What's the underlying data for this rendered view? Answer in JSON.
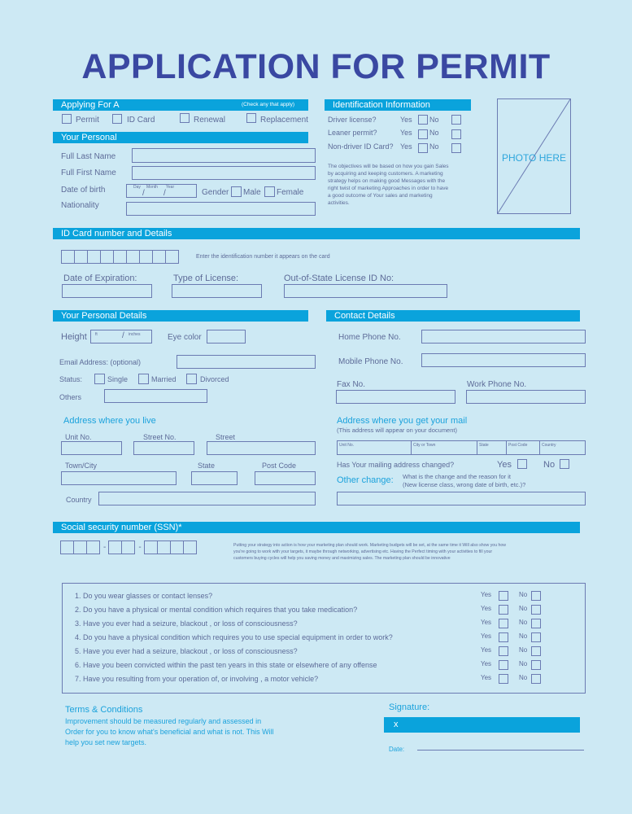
{
  "title": "APPLICATION FOR PERMIT",
  "applying": {
    "header": "Applying For A",
    "note": "(Check any that apply)",
    "options": [
      "Permit",
      "ID Card",
      "Renewal",
      "Replacement"
    ]
  },
  "personal": {
    "header": "Your Personal",
    "last_name": "Full Last Name",
    "first_name": "Full First Name",
    "dob": "Date of birth",
    "dob_day": "Day",
    "dob_month": "Month",
    "dob_year": "Year",
    "slash": "/",
    "gender": "Gender",
    "male": "Male",
    "female": "Female",
    "nationality": "Nationality"
  },
  "ident": {
    "header": "Identification Information",
    "rows": [
      {
        "label": "Driver license?",
        "yes": "Yes",
        "no": "No"
      },
      {
        "label": "Leaner permit?",
        "yes": "Yes",
        "no": "No"
      },
      {
        "label": "Non-driver ID Card?",
        "yes": "Yes",
        "no": "No"
      }
    ],
    "text": "The objectives will be based on how you gain Sales by acquiring and keeping customers. A marketing strategy helps on making good Messages with the right twist of marketing Approaches in order to have a good outcome of Your sales and marketing activities."
  },
  "photo": "PHOTO HERE",
  "idcard": {
    "header": "ID Card number and Details",
    "hint": "Enter the identification number it appears on the card",
    "expiration": "Date of Expiration:",
    "license_type": "Type of License:",
    "out_of_state": "Out-of-State License ID No:"
  },
  "details": {
    "header": "Your Personal Details",
    "height": "Height",
    "ft": "ft",
    "inches": "inches",
    "eye": "Eye color",
    "email": "Email Address: (optional)",
    "status": "Status:",
    "single": "Single",
    "married": "Married",
    "divorced": "Divorced",
    "others": "Others"
  },
  "contact": {
    "header": "Contact Details",
    "home": "Home Phone No.",
    "mobile": "Mobile Phone No.",
    "fax": "Fax No.",
    "work": "Work Phone No."
  },
  "address": {
    "header": "Address where you live",
    "unit": "Unit No.",
    "street_no": "Street No.",
    "street": "Street",
    "town": "Town/City",
    "state": "State",
    "post": "Post Code",
    "country": "Country"
  },
  "mail": {
    "header": "Address where you get your mail",
    "note": "(This address will appear on your document)",
    "cols": [
      "Unit No.",
      "City or Town",
      "State",
      "Post Code",
      "Country"
    ],
    "changed": "Has Your mailing address changed?",
    "yes": "Yes",
    "no": "No",
    "other": "Other change:",
    "other_note1": "What is the change and the reason for it",
    "other_note2": "(New license class, wrong date of birth, etc.)?"
  },
  "ssn": {
    "header": "Social security number (SSN)*",
    "dash": "-",
    "text": "Putting your strategy into action is how your marketing plan should work. Marketing budgets will be set, at the same time it Will also show you how you're going to work with your targets, it maybe through networking, advertising etc. Having the Perfect timing with your activities to fill your customers buying cycles will help you saving money and maximizing sales. The marketing plan should be innovative"
  },
  "questions": {
    "yes": "Yes",
    "no": "No",
    "items": [
      "1. Do you wear glasses or contact lenses?",
      "2. Do you have a physical or mental condition which requires that you take medication?",
      "3. Have you ever had a seizure, blackout , or loss of consciousness?",
      "4. Do you have a physical condition which requires you to use special equipment in order to work?",
      "5. Have you ever had a seizure, blackout , or loss of consciousness?",
      "6. Have you been convicted within the past ten years in this state or elsewhere of any offense",
      "7. Have you resulting from your operation of, or involving , a motor vehicle?"
    ]
  },
  "terms": {
    "header": "Terms & Conditions",
    "text": "Improvement should be measured regularly and assessed in Order for you to know what's beneficial and what is not. This Will help you set new targets."
  },
  "signature": {
    "label": "Signature:",
    "x": "x",
    "date": "Date:"
  },
  "colors": {
    "background": "#cde9f4",
    "accent": "#0aa3dc",
    "title": "#3a48a2",
    "text": "#5d6b98"
  }
}
